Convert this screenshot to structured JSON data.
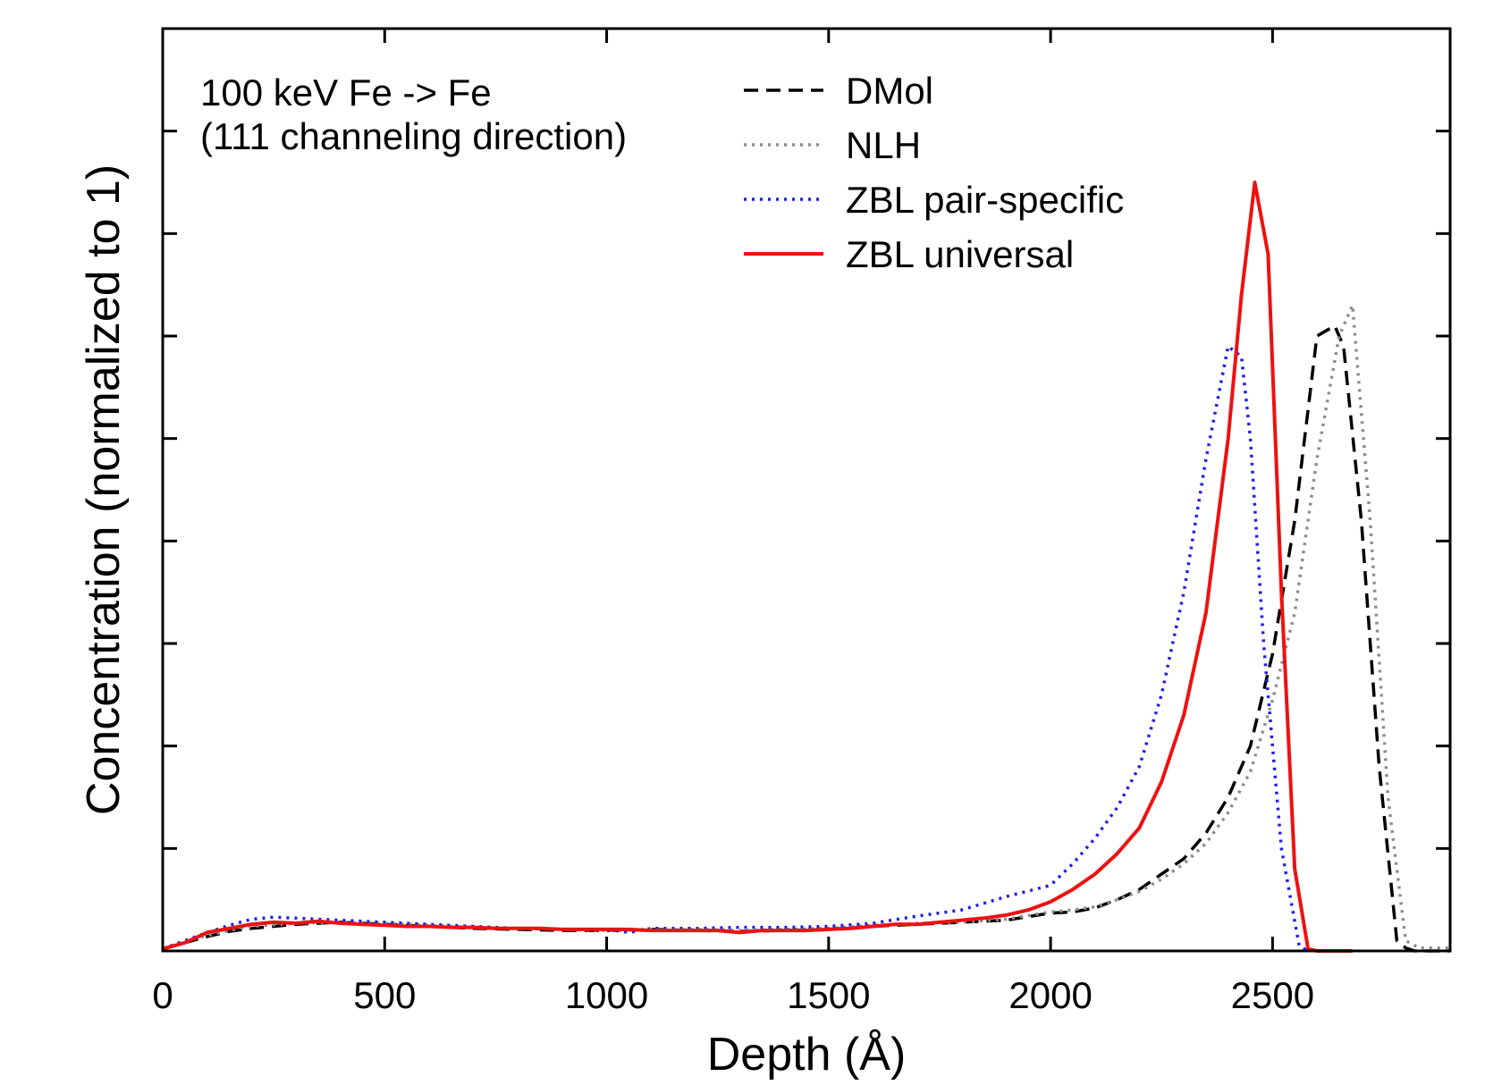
{
  "chart_data": {
    "type": "line",
    "xlabel": "Depth (Å)",
    "ylabel": "Concentration (normalized to 1)",
    "xlim": [
      0,
      2900
    ],
    "ylim": [
      0,
      0.9
    ],
    "x_ticks": [
      0,
      500,
      1000,
      1500,
      2000,
      2500
    ],
    "x_minor_ticks": [
      0,
      500,
      1000,
      1500,
      2000,
      2500
    ],
    "y_ticks": [
      0.1,
      0.2,
      0.3,
      0.4,
      0.5,
      0.6,
      0.7,
      0.8
    ],
    "y_tick_labels_visible": false,
    "grid": false,
    "legend_position": "top-right",
    "annotation_lines": [
      "100 keV Fe -> Fe",
      "(111 channeling direction)"
    ],
    "series": [
      {
        "name": "DMol",
        "color": "#000000",
        "style": "dashed",
        "x": [
          0,
          50,
          100,
          150,
          200,
          300,
          400,
          500,
          600,
          700,
          800,
          900,
          1000,
          1100,
          1200,
          1300,
          1400,
          1500,
          1600,
          1700,
          1800,
          1900,
          2000,
          2050,
          2100,
          2150,
          2200,
          2250,
          2300,
          2350,
          2400,
          2450,
          2500,
          2550,
          2600,
          2640,
          2660,
          2700,
          2740,
          2780,
          2800,
          2820,
          2850,
          2900
        ],
        "y": [
          0.002,
          0.008,
          0.014,
          0.019,
          0.022,
          0.026,
          0.028,
          0.026,
          0.024,
          0.022,
          0.021,
          0.02,
          0.02,
          0.021,
          0.02,
          0.019,
          0.02,
          0.021,
          0.024,
          0.026,
          0.028,
          0.03,
          0.037,
          0.038,
          0.042,
          0.05,
          0.06,
          0.075,
          0.09,
          0.115,
          0.15,
          0.2,
          0.29,
          0.42,
          0.6,
          0.61,
          0.59,
          0.42,
          0.18,
          0.01,
          0.003,
          0.0,
          0.0,
          0.0
        ]
      },
      {
        "name": "NLH",
        "color": "#8c8c8c",
        "style": "dotted",
        "x": [
          0,
          50,
          100,
          150,
          200,
          300,
          400,
          500,
          600,
          700,
          800,
          900,
          1000,
          1100,
          1200,
          1300,
          1400,
          1500,
          1600,
          1700,
          1800,
          1900,
          2000,
          2050,
          2100,
          2150,
          2200,
          2250,
          2300,
          2350,
          2400,
          2450,
          2500,
          2550,
          2600,
          2650,
          2680,
          2720,
          2760,
          2800,
          2830,
          2860,
          2900
        ],
        "y": [
          0.002,
          0.009,
          0.015,
          0.02,
          0.024,
          0.027,
          0.028,
          0.027,
          0.025,
          0.023,
          0.022,
          0.021,
          0.02,
          0.02,
          0.021,
          0.02,
          0.021,
          0.022,
          0.025,
          0.027,
          0.028,
          0.031,
          0.038,
          0.04,
          0.043,
          0.05,
          0.058,
          0.07,
          0.085,
          0.105,
          0.135,
          0.175,
          0.245,
          0.33,
          0.48,
          0.6,
          0.63,
          0.42,
          0.15,
          0.01,
          0.003,
          0.003,
          0.003
        ]
      },
      {
        "name": "ZBL pair-specific",
        "color": "#1f1fe6",
        "style": "dotted",
        "x": [
          0,
          50,
          100,
          150,
          200,
          250,
          300,
          400,
          500,
          600,
          700,
          800,
          900,
          1000,
          1050,
          1100,
          1200,
          1300,
          1400,
          1500,
          1600,
          1700,
          1800,
          1900,
          2000,
          2050,
          2100,
          2150,
          2200,
          2250,
          2300,
          2350,
          2400,
          2430,
          2450,
          2480,
          2520,
          2560,
          2580
        ],
        "y": [
          0.002,
          0.01,
          0.018,
          0.025,
          0.031,
          0.033,
          0.032,
          0.03,
          0.028,
          0.026,
          0.024,
          0.022,
          0.021,
          0.021,
          0.018,
          0.022,
          0.022,
          0.023,
          0.023,
          0.024,
          0.027,
          0.034,
          0.04,
          0.053,
          0.064,
          0.085,
          0.11,
          0.14,
          0.18,
          0.25,
          0.35,
          0.48,
          0.59,
          0.58,
          0.5,
          0.3,
          0.1,
          0.005,
          0.0
        ]
      },
      {
        "name": "ZBL universal",
        "color": "#ee1111",
        "style": "solid",
        "x": [
          0,
          50,
          100,
          150,
          200,
          250,
          300,
          350,
          400,
          450,
          500,
          550,
          600,
          650,
          700,
          750,
          800,
          850,
          900,
          950,
          1000,
          1050,
          1100,
          1150,
          1200,
          1250,
          1300,
          1350,
          1400,
          1450,
          1500,
          1550,
          1600,
          1650,
          1700,
          1750,
          1800,
          1850,
          1900,
          1950,
          2000,
          2050,
          2100,
          2150,
          2200,
          2250,
          2300,
          2350,
          2400,
          2430,
          2460,
          2490,
          2520,
          2550,
          2580,
          2600,
          2680
        ],
        "y": [
          0.002,
          0.008,
          0.018,
          0.022,
          0.026,
          0.028,
          0.027,
          0.029,
          0.027,
          0.026,
          0.025,
          0.024,
          0.024,
          0.023,
          0.023,
          0.022,
          0.022,
          0.022,
          0.021,
          0.021,
          0.021,
          0.021,
          0.02,
          0.02,
          0.02,
          0.02,
          0.018,
          0.02,
          0.02,
          0.02,
          0.021,
          0.022,
          0.024,
          0.026,
          0.026,
          0.028,
          0.03,
          0.032,
          0.035,
          0.04,
          0.048,
          0.06,
          0.075,
          0.095,
          0.12,
          0.165,
          0.23,
          0.33,
          0.5,
          0.64,
          0.75,
          0.68,
          0.35,
          0.08,
          0.002,
          0.0,
          0.0
        ]
      }
    ]
  }
}
